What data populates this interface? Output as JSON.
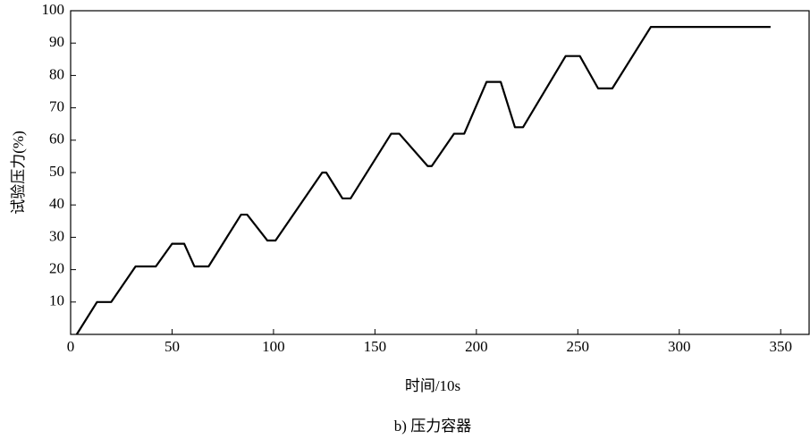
{
  "chart_data": {
    "type": "line",
    "x_label": "时间/10s",
    "y_label": "试验压力(%)",
    "caption": "b) 压力容器",
    "x": [
      3,
      13,
      20,
      32,
      42,
      50,
      56,
      61,
      68,
      84,
      87,
      97,
      101,
      124,
      126,
      134,
      138,
      158,
      162,
      176,
      178,
      189,
      194,
      205,
      212,
      219,
      223,
      244,
      251,
      260,
      267,
      286,
      345
    ],
    "values": [
      0,
      10,
      10,
      21,
      21,
      28,
      28,
      21,
      21,
      37,
      37,
      29,
      29,
      50,
      50,
      42,
      42,
      62,
      62,
      52,
      52,
      62,
      62,
      78,
      78,
      64,
      64,
      86,
      86,
      76,
      76,
      95,
      95
    ],
    "color": "#000000",
    "xlim": [
      0,
      364
    ],
    "xticks": [
      0,
      50,
      100,
      150,
      200,
      250,
      300,
      350
    ],
    "ylim": [
      0,
      100
    ],
    "yticks": [
      10,
      20,
      30,
      40,
      50,
      60,
      70,
      80,
      90,
      100
    ]
  }
}
